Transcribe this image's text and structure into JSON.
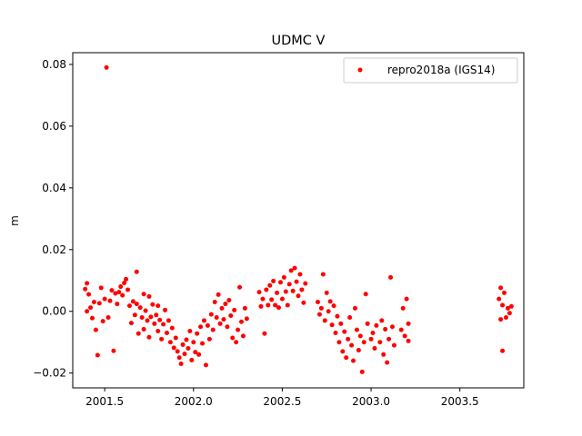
{
  "chart_data": {
    "type": "scatter",
    "title": "UDMC V",
    "xlabel": "",
    "ylabel": "m",
    "xlim": [
      2001.32,
      2003.86
    ],
    "ylim": [
      -0.0248,
      0.0838
    ],
    "xticks": [
      2001.5,
      2002.0,
      2002.5,
      2003.0,
      2003.5
    ],
    "xtick_labels": [
      "2001.5",
      "2002.0",
      "2002.5",
      "2003.0",
      "2003.5"
    ],
    "yticks": [
      -0.02,
      0.0,
      0.02,
      0.04,
      0.06,
      0.08
    ],
    "ytick_labels": [
      "−0.02",
      "0.00",
      "0.02",
      "0.04",
      "0.06",
      "0.08"
    ],
    "grid": false,
    "legend_position": "upper right",
    "series": [
      {
        "name": "repro2018a (IGS14)",
        "color": "#ff0000",
        "marker": "circle",
        "points": [
          [
            2001.51,
            0.079
          ],
          [
            2001.39,
            0.0072
          ],
          [
            2001.4,
            0.0091
          ],
          [
            2001.41,
            0.0055
          ],
          [
            2001.4,
            0.0
          ],
          [
            2001.42,
            0.0012
          ],
          [
            2001.43,
            -0.0022
          ],
          [
            2001.44,
            0.003
          ],
          [
            2001.45,
            -0.006
          ],
          [
            2001.46,
            -0.0142
          ],
          [
            2001.47,
            0.0026
          ],
          [
            2001.48,
            0.0076
          ],
          [
            2001.49,
            -0.0032
          ],
          [
            2001.5,
            0.004
          ],
          [
            2001.52,
            -0.002
          ],
          [
            2001.53,
            0.0034
          ],
          [
            2001.54,
            0.0068
          ],
          [
            2001.55,
            -0.0128
          ],
          [
            2001.56,
            0.0058
          ],
          [
            2001.57,
            0.0024
          ],
          [
            2001.58,
            0.0062
          ],
          [
            2001.59,
            0.008
          ],
          [
            2001.6,
            0.0052
          ],
          [
            2001.61,
            0.0092
          ],
          [
            2001.62,
            0.0104
          ],
          [
            2001.63,
            0.007
          ],
          [
            2001.64,
            0.0018
          ],
          [
            2001.65,
            -0.0038
          ],
          [
            2001.66,
            0.0032
          ],
          [
            2001.67,
            -0.0012
          ],
          [
            2001.68,
            0.0128
          ],
          [
            2001.68,
            0.0024
          ],
          [
            2001.69,
            -0.0072
          ],
          [
            2001.7,
            0.0012
          ],
          [
            2001.71,
            -0.002
          ],
          [
            2001.72,
            0.0056
          ],
          [
            2001.72,
            -0.0058
          ],
          [
            2001.73,
            0.0002
          ],
          [
            2001.74,
            -0.003
          ],
          [
            2001.75,
            0.0048
          ],
          [
            2001.75,
            -0.0084
          ],
          [
            2001.76,
            -0.0018
          ],
          [
            2001.77,
            0.0022
          ],
          [
            2001.78,
            -0.004
          ],
          [
            2001.79,
            -0.0012
          ],
          [
            2001.8,
            -0.0064
          ],
          [
            2001.8,
            0.0018
          ],
          [
            2001.81,
            -0.0028
          ],
          [
            2001.82,
            -0.009
          ],
          [
            2001.83,
            -0.0042
          ],
          [
            2001.84,
            0.0004
          ],
          [
            2001.85,
            -0.007
          ],
          [
            2001.86,
            -0.003
          ],
          [
            2001.87,
            -0.01
          ],
          [
            2001.88,
            -0.0054
          ],
          [
            2001.89,
            -0.0118
          ],
          [
            2001.9,
            -0.0086
          ],
          [
            2001.91,
            -0.013
          ],
          [
            2001.92,
            -0.015
          ],
          [
            2001.93,
            -0.017
          ],
          [
            2001.94,
            -0.0108
          ],
          [
            2001.95,
            -0.0138
          ],
          [
            2001.96,
            -0.0092
          ],
          [
            2001.97,
            -0.012
          ],
          [
            2001.98,
            -0.0064
          ],
          [
            2001.99,
            -0.0158
          ],
          [
            2002.0,
            -0.01
          ],
          [
            2002.01,
            -0.0132
          ],
          [
            2002.02,
            -0.0072
          ],
          [
            2002.03,
            -0.014
          ],
          [
            2002.04,
            -0.005
          ],
          [
            2002.05,
            -0.0104
          ],
          [
            2002.06,
            -0.003
          ],
          [
            2002.07,
            -0.0174
          ],
          [
            2002.08,
            -0.0046
          ],
          [
            2002.09,
            -0.009
          ],
          [
            2002.1,
            -0.001
          ],
          [
            2002.11,
            -0.006
          ],
          [
            2002.12,
            0.003
          ],
          [
            2002.13,
            -0.002
          ],
          [
            2002.14,
            0.0054
          ],
          [
            2002.15,
            -0.004
          ],
          [
            2002.16,
            0.001
          ],
          [
            2002.17,
            -0.0026
          ],
          [
            2002.18,
            0.0024
          ],
          [
            2002.19,
            -0.005
          ],
          [
            2002.2,
            0.0036
          ],
          [
            2002.21,
            -0.0014
          ],
          [
            2002.22,
            -0.0086
          ],
          [
            2002.23,
            0.0004
          ],
          [
            2002.24,
            -0.01
          ],
          [
            2002.25,
            -0.006
          ],
          [
            2002.26,
            0.0078
          ],
          [
            2002.27,
            -0.0034
          ],
          [
            2002.28,
            -0.008
          ],
          [
            2002.29,
            0.001
          ],
          [
            2002.3,
            -0.0024
          ],
          [
            2002.37,
            0.0062
          ],
          [
            2002.38,
            0.0016
          ],
          [
            2002.39,
            0.004
          ],
          [
            2002.4,
            -0.0072
          ],
          [
            2002.41,
            0.007
          ],
          [
            2002.42,
            0.002
          ],
          [
            2002.43,
            0.0084
          ],
          [
            2002.44,
            0.0038
          ],
          [
            2002.45,
            0.0098
          ],
          [
            2002.46,
            0.002
          ],
          [
            2002.47,
            0.006
          ],
          [
            2002.48,
            0.0012
          ],
          [
            2002.49,
            0.0094
          ],
          [
            2002.5,
            0.004
          ],
          [
            2002.51,
            0.011
          ],
          [
            2002.52,
            0.0064
          ],
          [
            2002.53,
            0.002
          ],
          [
            2002.54,
            0.0088
          ],
          [
            2002.55,
            0.0132
          ],
          [
            2002.56,
            0.0066
          ],
          [
            2002.57,
            0.014
          ],
          [
            2002.58,
            0.0096
          ],
          [
            2002.59,
            0.005
          ],
          [
            2002.6,
            0.012
          ],
          [
            2002.61,
            0.007
          ],
          [
            2002.62,
            0.0028
          ],
          [
            2002.63,
            0.009
          ],
          [
            2002.7,
            0.003
          ],
          [
            2002.71,
            -0.001
          ],
          [
            2002.72,
            0.001
          ],
          [
            2002.73,
            0.012
          ],
          [
            2002.74,
            -0.003
          ],
          [
            2002.75,
            0.006
          ],
          [
            2002.76,
            0.0
          ],
          [
            2002.77,
            0.0032
          ],
          [
            2002.78,
            -0.0044
          ],
          [
            2002.79,
            0.0018
          ],
          [
            2002.8,
            -0.007
          ],
          [
            2002.81,
            -0.0016
          ],
          [
            2002.82,
            -0.01
          ],
          [
            2002.83,
            -0.004
          ],
          [
            2002.84,
            -0.013
          ],
          [
            2002.85,
            -0.0066
          ],
          [
            2002.86,
            -0.015
          ],
          [
            2002.87,
            -0.009
          ],
          [
            2002.88,
            -0.002
          ],
          [
            2002.89,
            -0.011
          ],
          [
            2002.9,
            -0.016
          ],
          [
            2002.91,
            0.001
          ],
          [
            2002.92,
            -0.006
          ],
          [
            2002.93,
            -0.0126
          ],
          [
            2002.94,
            -0.008
          ],
          [
            2002.95,
            -0.0196
          ],
          [
            2002.96,
            -0.01
          ],
          [
            2002.97,
            0.0056
          ],
          [
            2002.98,
            -0.004
          ],
          [
            2003.0,
            -0.009
          ],
          [
            2003.01,
            -0.007
          ],
          [
            2003.02,
            -0.012
          ],
          [
            2003.03,
            -0.0046
          ],
          [
            2003.05,
            -0.01
          ],
          [
            2003.06,
            -0.003
          ],
          [
            2003.07,
            -0.014
          ],
          [
            2003.08,
            -0.0058
          ],
          [
            2003.09,
            -0.0166
          ],
          [
            2003.1,
            -0.009
          ],
          [
            2003.11,
            0.011
          ],
          [
            2003.12,
            -0.005
          ],
          [
            2003.13,
            -0.011
          ],
          [
            2003.17,
            -0.006
          ],
          [
            2003.18,
            0.001
          ],
          [
            2003.19,
            -0.008
          ],
          [
            2003.2,
            0.004
          ],
          [
            2003.21,
            -0.0096
          ],
          [
            2003.21,
            -0.004
          ],
          [
            2003.72,
            0.004
          ],
          [
            2003.73,
            0.0076
          ],
          [
            2003.73,
            -0.0026
          ],
          [
            2003.74,
            0.002
          ],
          [
            2003.74,
            -0.0128
          ],
          [
            2003.75,
            0.006
          ],
          [
            2003.76,
            -0.002
          ],
          [
            2003.77,
            0.001
          ],
          [
            2003.78,
            -0.0006
          ],
          [
            2003.79,
            0.0016
          ]
        ]
      }
    ]
  }
}
